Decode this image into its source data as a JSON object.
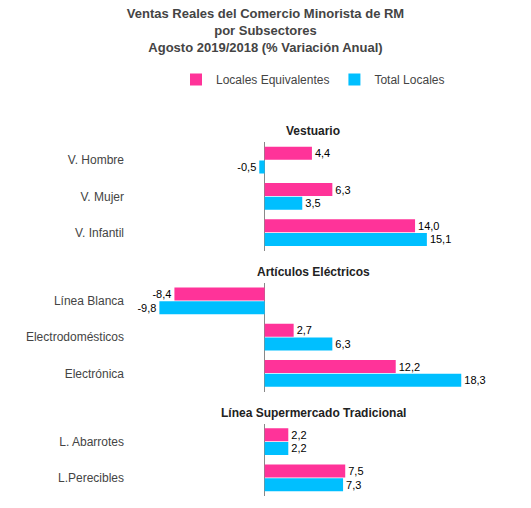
{
  "title": "Ventas Reales del Comercio Minorista de RM\npor Subsectores\nAgosto 2019/2018 (% Variación Anual)",
  "chart_data": [
    {
      "type": "bar",
      "orientation": "horizontal",
      "title": "Vestuario",
      "categories": [
        "V. Hombre",
        "V. Mujer",
        "V. Infantil"
      ],
      "series": [
        {
          "name": "Locales Equivalentes",
          "color": "#FF3399",
          "values": [
            4.4,
            6.3,
            14.0
          ],
          "value_labels": [
            "4,4",
            "6,3",
            "14,0"
          ]
        },
        {
          "name": "Total Locales",
          "color": "#00BFFF",
          "values": [
            -0.5,
            3.5,
            15.1
          ],
          "value_labels": [
            "-0,5",
            "3,5",
            "15,1"
          ]
        }
      ],
      "xlim": [
        -13,
        22
      ],
      "data_labels": true,
      "tick_labels": "y",
      "grid": false,
      "legend": "top"
    },
    {
      "type": "bar",
      "orientation": "horizontal",
      "title": "Artículos Eléctricos",
      "categories": [
        "Línea Blanca",
        "Electrodomésticos",
        "Electrónica"
      ],
      "series": [
        {
          "name": "Locales Equivalentes",
          "color": "#FF3399",
          "values": [
            -8.4,
            2.7,
            12.2
          ],
          "value_labels": [
            "-8,4",
            "2,7",
            "12,2"
          ]
        },
        {
          "name": "Total Locales",
          "color": "#00BFFF",
          "values": [
            -9.8,
            6.3,
            18.3
          ],
          "value_labels": [
            "-9,8",
            "6,3",
            "18,3"
          ]
        }
      ],
      "xlim": [
        -13,
        22
      ],
      "data_labels": true,
      "tick_labels": "y",
      "grid": false
    },
    {
      "type": "bar",
      "orientation": "horizontal",
      "title": "Línea Supermercado Tradicional",
      "categories": [
        "L. Abarrotes",
        "L.Perecibles"
      ],
      "series": [
        {
          "name": "Locales Equivalentes",
          "color": "#FF3399",
          "values": [
            2.2,
            7.5
          ],
          "value_labels": [
            "2,2",
            "7,5"
          ]
        },
        {
          "name": "Total Locales",
          "color": "#00BFFF",
          "values": [
            2.2,
            7.3
          ],
          "value_labels": [
            "2,2",
            "7,3"
          ]
        }
      ],
      "xlim": [
        -13,
        22
      ],
      "data_labels": true,
      "tick_labels": "y",
      "grid": false
    }
  ]
}
